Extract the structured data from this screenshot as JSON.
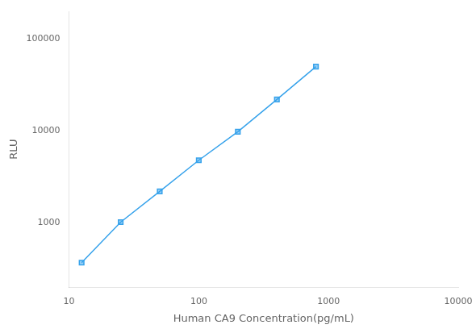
{
  "chart_data": {
    "type": "line",
    "x": [
      12.5,
      25,
      50,
      100,
      200,
      400,
      800
    ],
    "values": [
      370,
      1020,
      2200,
      4800,
      9800,
      22000,
      50000
    ],
    "xlabel": "Human CA9 Concentration(pg/mL)",
    "ylabel": "RLU",
    "xlim": [
      10,
      10000
    ],
    "ylim": [
      200,
      200000
    ],
    "xticks": [
      10,
      100,
      1000,
      10000
    ],
    "yticks": [
      1000,
      10000,
      100000
    ],
    "log": true,
    "grid": false,
    "marker": "square",
    "line_style": "solid"
  }
}
